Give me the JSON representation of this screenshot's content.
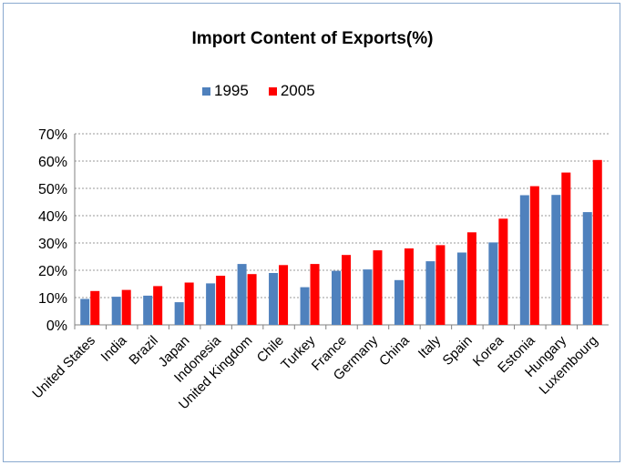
{
  "chart_data": {
    "type": "bar",
    "title": "Import Content of Exports(%)",
    "xlabel": "",
    "ylabel": "",
    "categories": [
      "United States",
      "India",
      "Brazil",
      "Japan",
      "Indonesia",
      "United Kingdom",
      "Chile",
      "Turkey",
      "France",
      "Germany",
      "China",
      "Italy",
      "Spain",
      "Korea",
      "Estonia",
      "Hungary",
      "Luxembourg"
    ],
    "series": [
      {
        "name": "1995",
        "color": "#4f81bd",
        "values": [
          9.5,
          10.3,
          10.7,
          8.3,
          15.2,
          22.3,
          19.0,
          13.8,
          19.8,
          20.3,
          16.4,
          23.3,
          26.5,
          30.2,
          47.5,
          47.6,
          41.3
        ]
      },
      {
        "name": "2005",
        "color": "#ff0000",
        "values": [
          12.4,
          12.8,
          14.2,
          15.5,
          18.0,
          18.6,
          21.9,
          22.3,
          25.6,
          27.3,
          28.0,
          29.2,
          33.9,
          38.9,
          50.8,
          55.8,
          60.4
        ]
      }
    ],
    "ylim": [
      0,
      70
    ],
    "yticks": [
      "0%",
      "10%",
      "20%",
      "30%",
      "40%",
      "50%",
      "60%",
      "70%"
    ],
    "grid": true,
    "legend_position": "top"
  }
}
